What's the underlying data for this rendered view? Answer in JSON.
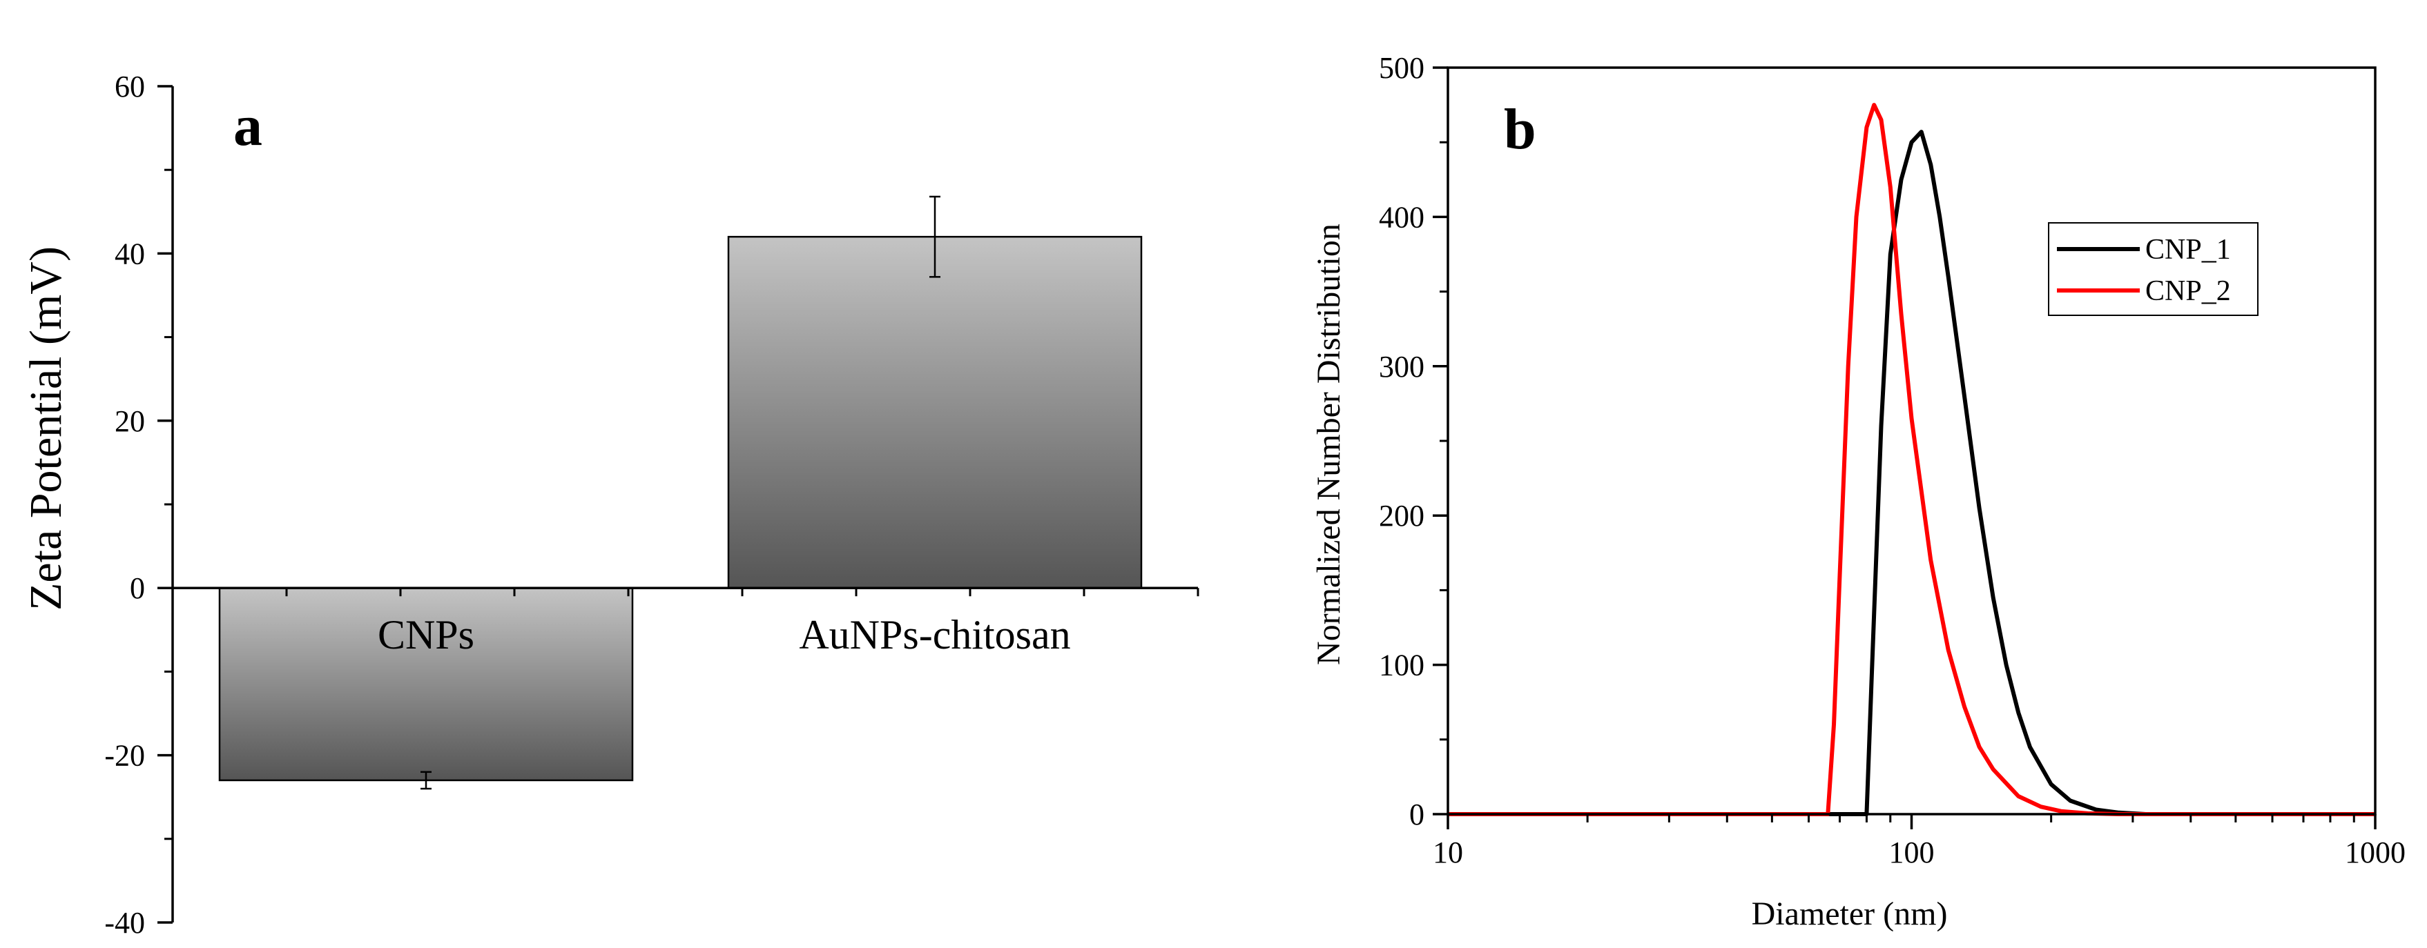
{
  "chart_data": [
    {
      "type": "bar",
      "panel_label": "a",
      "title": "",
      "xlabel": "",
      "ylabel": "Zeta Potential (mV)",
      "categories": [
        "CNPs",
        "AuNPs-chitosan"
      ],
      "values": [
        -23,
        42
      ],
      "errors": [
        1,
        4.8
      ],
      "ylim": [
        -40,
        60
      ],
      "yticks": [
        -40,
        -20,
        0,
        20,
        40,
        60
      ],
      "ytick_labels": [
        "-40",
        "-20",
        "0",
        "20",
        "40",
        "60"
      ],
      "bar_gradient": {
        "top": "#c4c4c4",
        "bottom": "#555555"
      },
      "grid": false
    },
    {
      "type": "line",
      "panel_label": "b",
      "title": "",
      "xlabel": "Diameter (nm)",
      "ylabel": "Normalized Number Distribution",
      "xscale": "log",
      "xlim": [
        10,
        1000
      ],
      "ylim": [
        0,
        500
      ],
      "xticks": [
        10,
        100,
        1000
      ],
      "xtick_labels": [
        "10",
        "100",
        "1000"
      ],
      "yticks": [
        0,
        100,
        200,
        300,
        400,
        500
      ],
      "ytick_labels": [
        "0",
        "100",
        "200",
        "300",
        "400",
        "500"
      ],
      "legend_position": "top-right",
      "grid": false,
      "series": [
        {
          "name": "CNP_1",
          "color": "#000000",
          "x": [
            10,
            80,
            82,
            86,
            90,
            95,
            100,
            105,
            110,
            115,
            120,
            130,
            140,
            150,
            160,
            170,
            180,
            200,
            220,
            250,
            280,
            320
          ],
          "y": [
            0,
            0,
            90,
            260,
            375,
            425,
            450,
            457,
            435,
            400,
            360,
            280,
            205,
            145,
            100,
            68,
            45,
            20,
            9,
            3,
            1,
            0
          ]
        },
        {
          "name": "CNP_2",
          "color": "#ff0000",
          "x": [
            10,
            66,
            68,
            70,
            73,
            76,
            80,
            83,
            86,
            90,
            95,
            100,
            110,
            120,
            130,
            140,
            150,
            170,
            190,
            210,
            240,
            280,
            1000
          ],
          "y": [
            0,
            0,
            60,
            160,
            300,
            400,
            460,
            475,
            465,
            420,
            335,
            265,
            170,
            110,
            72,
            45,
            30,
            12,
            5,
            2,
            0.5,
            0,
            0
          ]
        }
      ]
    }
  ]
}
